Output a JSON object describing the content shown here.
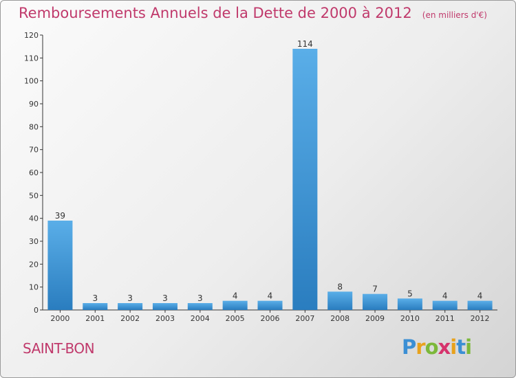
{
  "chart_data": {
    "type": "bar",
    "title": "Remboursements Annuels de la Dette de 2000 à 2012",
    "unit_note": "(en milliers d'€)",
    "categories": [
      "2000",
      "2001",
      "2002",
      "2003",
      "2004",
      "2005",
      "2006",
      "2007",
      "2008",
      "2009",
      "2010",
      "2011",
      "2012"
    ],
    "values": [
      39,
      3,
      3,
      3,
      3,
      4,
      4,
      114,
      8,
      7,
      5,
      4,
      4
    ],
    "ylim": [
      0,
      120
    ],
    "yticks": [
      0,
      10,
      20,
      30,
      40,
      50,
      60,
      70,
      80,
      90,
      100,
      110,
      120
    ],
    "grid": false,
    "bar_color_top": "#5aaee8",
    "bar_color_bottom": "#2a7dbf"
  },
  "commune": "SAINT-BON",
  "logo": {
    "letters": [
      "P",
      "r",
      "o",
      "x",
      "i",
      "t",
      "i"
    ],
    "colors": [
      "#3b8fd4",
      "#e8a21c",
      "#7cb83a",
      "#d6336c",
      "#e8a21c",
      "#3b8fd4",
      "#7cb83a"
    ]
  }
}
